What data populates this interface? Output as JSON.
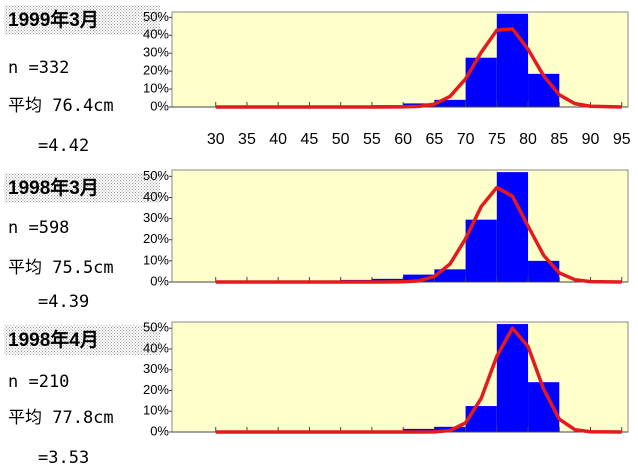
{
  "chart_data": [
    {
      "type": "histogram",
      "title": "1999年3月",
      "annotations": [
        "n =332",
        "平均 76.4cm",
        "=4.42"
      ],
      "bins": [
        30,
        35,
        40,
        45,
        50,
        55,
        60,
        65,
        70,
        75,
        80,
        85,
        90,
        95
      ],
      "values": [
        0,
        0,
        0,
        0,
        0.3,
        1,
        2,
        4,
        27.5,
        52,
        18.5,
        0,
        0
      ],
      "color": "#0000ff",
      "curve": {
        "color": "#e41a1c",
        "x": [
          30,
          55,
          60,
          62.5,
          65,
          67.5,
          70,
          72.5,
          75,
          77.5,
          80,
          82.5,
          85,
          87.5,
          90,
          95
        ],
        "values": [
          0,
          0,
          0.04,
          0.32,
          1.6,
          5.9,
          15.7,
          30.5,
          42.8,
          43.6,
          32.2,
          17.4,
          6.8,
          1.9,
          0.4,
          0
        ]
      },
      "xlim": [
        23,
        96
      ],
      "xticks": [
        30,
        35,
        40,
        45,
        50,
        55,
        60,
        65,
        70,
        75,
        80,
        85,
        90,
        95
      ],
      "ylim": [
        0,
        53
      ],
      "yticks": [
        {
          "value": 0,
          "label": "0%"
        },
        {
          "value": 10,
          "label": "10%"
        },
        {
          "value": 20,
          "label": "20%"
        },
        {
          "value": 30,
          "label": "30%"
        },
        {
          "value": 40,
          "label": "40%"
        },
        {
          "value": 50,
          "label": "50%"
        }
      ]
    },
    {
      "type": "histogram",
      "title": "1998年3月",
      "annotations": [
        "n =598",
        "平均 75.5cm",
        "=4.39"
      ],
      "bins": [
        30,
        35,
        40,
        45,
        50,
        55,
        60,
        65,
        70,
        75,
        80,
        85,
        90,
        95
      ],
      "values": [
        0,
        0,
        0,
        0,
        1,
        1.5,
        3.5,
        6,
        29.5,
        52,
        10,
        0,
        0
      ],
      "color": "#0000ff",
      "curve": {
        "color": "#e41a1c",
        "x": [
          30,
          55,
          60,
          62.5,
          65,
          67.5,
          70,
          72.5,
          75,
          77.5,
          80,
          82.5,
          85,
          87.5,
          90,
          95
        ],
        "values": [
          0,
          0,
          0.09,
          0.56,
          2.6,
          8.5,
          20.5,
          35.7,
          44.7,
          40.6,
          26.5,
          12.6,
          4.3,
          1.1,
          0.2,
          0
        ]
      },
      "xlim": [
        23,
        96
      ],
      "ylim": [
        0,
        53
      ],
      "yticks": [
        {
          "value": 0,
          "label": "0%"
        },
        {
          "value": 10,
          "label": "10%"
        },
        {
          "value": 20,
          "label": "20%"
        },
        {
          "value": 30,
          "label": "30%"
        },
        {
          "value": 40,
          "label": "40%"
        },
        {
          "value": 50,
          "label": "50%"
        }
      ]
    },
    {
      "type": "histogram",
      "title": "1998年4月",
      "annotations": [
        "n =210",
        "平均 77.8cm",
        "=3.53"
      ],
      "bins": [
        30,
        35,
        40,
        45,
        50,
        55,
        60,
        65,
        70,
        75,
        80,
        85,
        90,
        95
      ],
      "values": [
        0,
        0,
        0,
        0,
        0,
        0,
        1.5,
        2.5,
        12.5,
        52,
        24,
        0,
        0
      ],
      "color": "#0000ff",
      "curve": {
        "color": "#e41a1c",
        "x": [
          30,
          55,
          60,
          62.5,
          65,
          67.5,
          70,
          72.5,
          75,
          77.5,
          80,
          82.5,
          85,
          87.5,
          90,
          95
        ],
        "values": [
          0,
          0,
          0,
          0,
          0.07,
          0.7,
          4.4,
          16.2,
          36.5,
          50,
          41.2,
          20.6,
          6.2,
          1.1,
          0.1,
          0
        ]
      },
      "xlim": [
        23,
        96
      ],
      "ylim": [
        0,
        53
      ],
      "yticks": [
        {
          "value": 0,
          "label": "0%"
        },
        {
          "value": 10,
          "label": "10%"
        },
        {
          "value": 20,
          "label": "20%"
        },
        {
          "value": 30,
          "label": "30%"
        },
        {
          "value": 40,
          "label": "40%"
        },
        {
          "value": 50,
          "label": "50%"
        }
      ]
    }
  ]
}
